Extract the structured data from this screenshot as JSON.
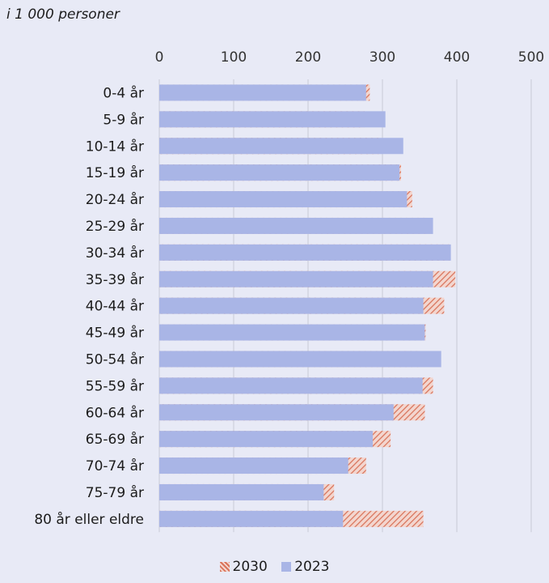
{
  "chart_data": {
    "type": "bar",
    "orientation": "horizontal",
    "subtitle": "i 1 000 personer",
    "categories": [
      "0-4 år",
      "5-9 år",
      "10-14 år",
      "15-19 år",
      "20-24 år",
      "25-29 år",
      "30-34 år",
      "35-39 år",
      "40-44 år",
      "45-49 år",
      "50-54 år",
      "55-59 år",
      "60-64 år",
      "65-69 år",
      "70-74 år",
      "75-79 år",
      "80 år eller eldre"
    ],
    "series": [
      {
        "name": "2030",
        "values": [
          283,
          276,
          295,
          325,
          340,
          360,
          390,
          398,
          383,
          358,
          350,
          368,
          357,
          311,
          278,
          235,
          355
        ],
        "color": "#e8927c",
        "pattern": "hatched"
      },
      {
        "name": "2023",
        "values": [
          278,
          304,
          328,
          323,
          333,
          368,
          392,
          368,
          355,
          357,
          379,
          354,
          315,
          287,
          254,
          221,
          247
        ],
        "color": "#a9b5e6"
      }
    ],
    "xlim": [
      0,
      500
    ],
    "xticks": [
      "0",
      "100",
      "200",
      "300",
      "400",
      "500"
    ],
    "grid": true,
    "legend_position": "bottom"
  }
}
